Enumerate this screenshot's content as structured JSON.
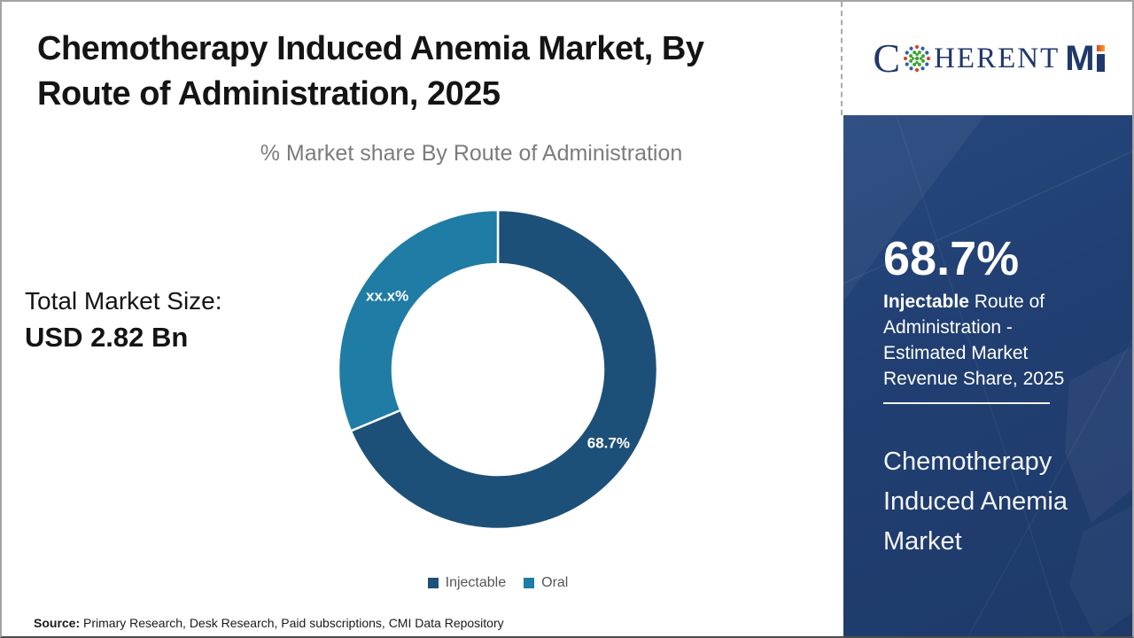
{
  "header": {
    "title_line1": "Chemotherapy Induced Anemia Market, By",
    "title_line2": "Route of Administration, 2025",
    "subtitle": "% Market share By Route of Administration"
  },
  "logo": {
    "full_name": "COHERENT MI",
    "part_c": "C",
    "part_rest": "HERENT",
    "part_m": "M"
  },
  "total_market": {
    "label": "Total Market Size:",
    "value": "USD 2.82 Bn"
  },
  "chart_data": {
    "type": "pie",
    "subtype": "donut",
    "title": "% Market share By Route of Administration",
    "start_angle_deg": 0,
    "direction": "clockwise",
    "inner_radius_ratio": 0.66,
    "legend_position": "bottom",
    "series": [
      {
        "name": "Injectable",
        "value": 68.7,
        "label": "68.7%",
        "color": "#1d5078"
      },
      {
        "name": "Oral",
        "value": 31.3,
        "label": "xx.x%",
        "color": "#1f7ca4"
      }
    ]
  },
  "sidebar": {
    "stat_value": "68.7%",
    "stat_desc_bold": "Injectable",
    "stat_desc_rest": " Route of Administration - Estimated Market Revenue Share, 2025",
    "report_title": "Chemotherapy Induced Anemia Market",
    "background_color": "#203e70"
  },
  "source": {
    "label": "Source:",
    "text": " Primary Research, Desk Research, Paid subscriptions, CMI Data Repository"
  }
}
